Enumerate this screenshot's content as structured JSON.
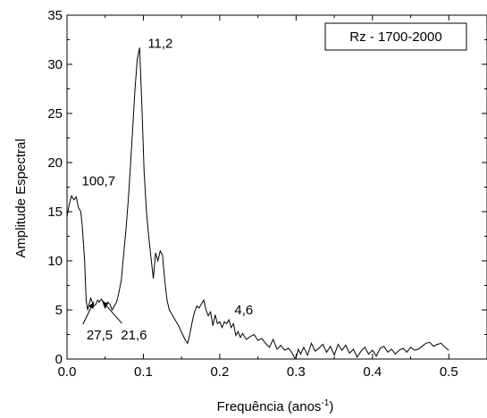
{
  "chart_data": {
    "type": "line",
    "xlabel_main": "Frequência (anos",
    "xlabel_sup": "-1",
    "xlabel_close": ")",
    "ylabel": "Amplitude Espectral",
    "legend": "Rz - 1700-2000",
    "legend_position": "top-right",
    "xlim": [
      0.0,
      0.55
    ],
    "ylim": [
      0,
      35
    ],
    "xticks": [
      "0.0",
      "0.1",
      "0.2",
      "0.3",
      "0.4",
      "0.5"
    ],
    "yticks": [
      "0",
      "5",
      "10",
      "15",
      "20",
      "25",
      "30",
      "35"
    ],
    "grid": false,
    "annotations": [
      {
        "text": "100,7",
        "x": 0.01,
        "y": 16.6
      },
      {
        "text": "11,2",
        "x": 0.094,
        "y": 31.7
      },
      {
        "text": "4,6",
        "x": 0.217,
        "y": 4.0
      },
      {
        "text": "27,5",
        "x": 0.035,
        "y": 6.0,
        "arrow": true
      },
      {
        "text": "21,6",
        "x": 0.046,
        "y": 6.1,
        "arrow": true
      }
    ],
    "series": [
      {
        "x": [
          0.0,
          0.003,
          0.006,
          0.009,
          0.012,
          0.015,
          0.018,
          0.02,
          0.023,
          0.025,
          0.027,
          0.029,
          0.031,
          0.033,
          0.035,
          0.038,
          0.04,
          0.042,
          0.045,
          0.047,
          0.05,
          0.053,
          0.056,
          0.059,
          0.062,
          0.065,
          0.068,
          0.071,
          0.074,
          0.077,
          0.08,
          0.083,
          0.086,
          0.089,
          0.092,
          0.095,
          0.098,
          0.101,
          0.104,
          0.107,
          0.11,
          0.113,
          0.116,
          0.119,
          0.122,
          0.125,
          0.128,
          0.131,
          0.134,
          0.137,
          0.14,
          0.143,
          0.146,
          0.149,
          0.152,
          0.155,
          0.158,
          0.161,
          0.164,
          0.167,
          0.17,
          0.173,
          0.176,
          0.179,
          0.182,
          0.185,
          0.188,
          0.191,
          0.194,
          0.197,
          0.2,
          0.203,
          0.206,
          0.209,
          0.212,
          0.215,
          0.218,
          0.221,
          0.224,
          0.227,
          0.23,
          0.235,
          0.24,
          0.245,
          0.25,
          0.255,
          0.26,
          0.265,
          0.27,
          0.275,
          0.28,
          0.285,
          0.29,
          0.295,
          0.298,
          0.3,
          0.303,
          0.306,
          0.31,
          0.315,
          0.32,
          0.325,
          0.33,
          0.335,
          0.34,
          0.345,
          0.35,
          0.355,
          0.36,
          0.365,
          0.37,
          0.375,
          0.38,
          0.385,
          0.39,
          0.395,
          0.4,
          0.405,
          0.41,
          0.415,
          0.42,
          0.425,
          0.43,
          0.435,
          0.44,
          0.445,
          0.45,
          0.455,
          0.46,
          0.465,
          0.47,
          0.475,
          0.48,
          0.485,
          0.49,
          0.495,
          0.5
        ],
        "y": [
          14.5,
          15.8,
          16.6,
          16.2,
          16.5,
          15.4,
          15.0,
          13.5,
          10.0,
          6.0,
          5.0,
          5.6,
          6.2,
          5.8,
          5.4,
          5.6,
          6.0,
          5.8,
          6.1,
          5.9,
          5.2,
          5.8,
          5.6,
          5.0,
          5.4,
          5.8,
          6.8,
          8.0,
          10.5,
          13.0,
          16.0,
          19.5,
          23.5,
          27.5,
          30.5,
          31.7,
          26.0,
          19.0,
          15.0,
          12.5,
          10.3,
          8.2,
          10.8,
          10.0,
          11.0,
          10.6,
          8.0,
          6.0,
          5.0,
          4.6,
          4.2,
          3.8,
          3.4,
          2.9,
          2.4,
          1.9,
          1.6,
          2.6,
          3.8,
          4.8,
          5.4,
          5.2,
          5.6,
          6.0,
          5.0,
          4.4,
          4.8,
          3.4,
          4.5,
          3.6,
          3.8,
          3.2,
          3.8,
          3.6,
          4.0,
          3.2,
          3.6,
          2.4,
          2.8,
          2.2,
          2.6,
          2.0,
          2.3,
          2.5,
          1.9,
          2.1,
          1.6,
          1.2,
          2.0,
          1.0,
          1.4,
          0.9,
          1.1,
          0.6,
          0.1,
          0.2,
          1.0,
          0.5,
          1.2,
          0.4,
          1.6,
          0.8,
          1.1,
          1.5,
          0.7,
          1.3,
          0.4,
          1.5,
          0.9,
          1.4,
          0.6,
          1.0,
          0.2,
          0.8,
          1.2,
          0.5,
          0.9,
          0.3,
          1.1,
          1.3,
          0.7,
          1.0,
          0.5,
          0.9,
          1.1,
          0.7,
          1.2,
          0.9,
          1.0,
          1.3,
          1.6,
          1.7,
          1.3,
          1.5,
          1.6,
          1.2,
          0.9
        ]
      }
    ]
  }
}
